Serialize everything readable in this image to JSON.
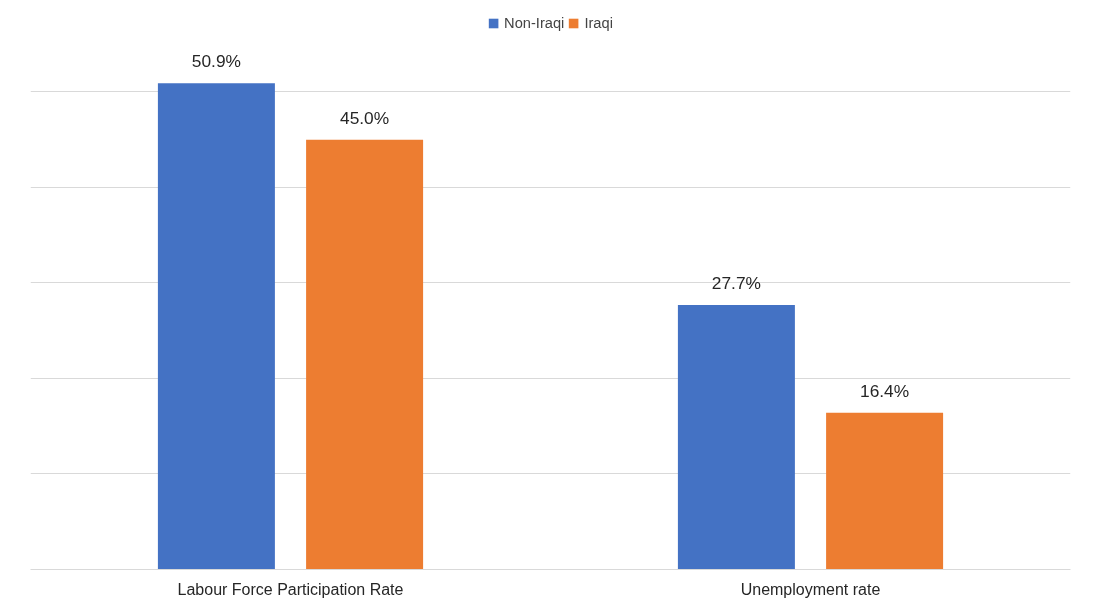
{
  "chart_data": {
    "type": "bar",
    "categories": [
      "Labour Force Participation Rate",
      "Unemployment rate"
    ],
    "series": [
      {
        "name": "Non-Iraqi",
        "color": "#4472c4",
        "values": [
          50.9,
          27.7
        ],
        "value_labels": [
          "50.9%",
          "27.7%"
        ]
      },
      {
        "name": "Iraqi",
        "color": "#ed7d31",
        "values": [
          45.0,
          16.4
        ],
        "value_labels": [
          "45.0%",
          "16.4%"
        ]
      }
    ],
    "grid": "y",
    "legend": "top",
    "tick_labels": "x"
  }
}
